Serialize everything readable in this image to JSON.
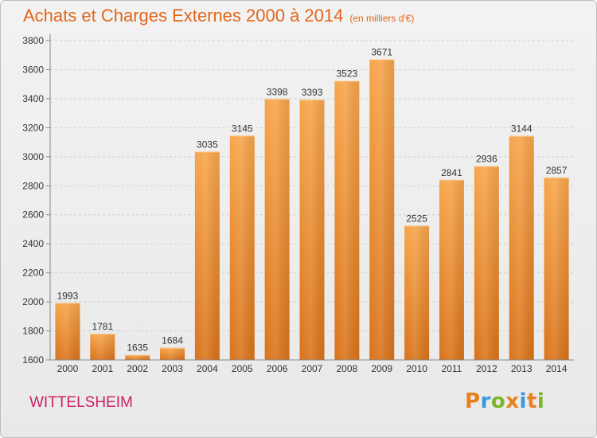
{
  "header": {
    "title": "Achats et Charges Externes 2000 à 2014",
    "subtitle": "(en milliers d'€)"
  },
  "footer": {
    "town": "WITTELSHEIM",
    "logo": {
      "letters": [
        "P",
        "r",
        "o",
        "x",
        "i",
        "t",
        "i"
      ],
      "colors": [
        "#e8801c",
        "#3a9ad9",
        "#7ab829",
        "#e8801c",
        "#3a9ad9",
        "#e8801c",
        "#7ab829"
      ]
    }
  },
  "chart_data": {
    "type": "bar",
    "title": "Achats et Charges Externes 2000 à 2014",
    "subtitle": "(en milliers d'€)",
    "categories": [
      "2000",
      "2001",
      "2002",
      "2003",
      "2004",
      "2005",
      "2006",
      "2007",
      "2008",
      "2009",
      "2010",
      "2011",
      "2012",
      "2013",
      "2014"
    ],
    "values": [
      1993,
      1781,
      1635,
      1684,
      3035,
      3145,
      3398,
      3393,
      3523,
      3671,
      2525,
      2841,
      2936,
      3144,
      2857
    ],
    "ylim": [
      1600,
      3800
    ],
    "yticks": [
      1600,
      1800,
      2000,
      2200,
      2400,
      2600,
      2800,
      3000,
      3200,
      3400,
      3600,
      3800
    ],
    "grid": "horizontal-dashed",
    "bar_color": "#f39a3c",
    "show_data_labels": true
  }
}
